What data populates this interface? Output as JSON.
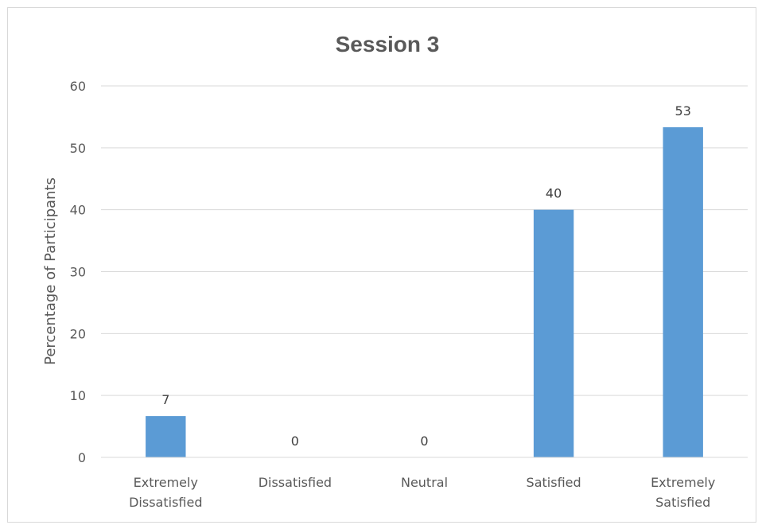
{
  "chart_data": {
    "type": "bar",
    "title": "Session 3",
    "xlabel": "",
    "ylabel": "Percentage of Participants",
    "categories": [
      [
        "Extremely",
        "Dissatisfied"
      ],
      [
        "Dissatisfied"
      ],
      [
        "Neutral"
      ],
      [
        "Satisfied"
      ],
      [
        "Extremely",
        "Satisfied"
      ]
    ],
    "values": [
      6.67,
      0,
      0,
      40,
      53.33
    ],
    "data_labels": [
      "7",
      "0",
      "0",
      "40",
      "53"
    ],
    "ylim": [
      0,
      60
    ],
    "yticks": [
      0,
      10,
      20,
      30,
      40,
      50,
      60
    ],
    "grid": true,
    "legend": "none",
    "bar_color": "#5b9bd5",
    "grid_color": "#d9d9d9"
  }
}
